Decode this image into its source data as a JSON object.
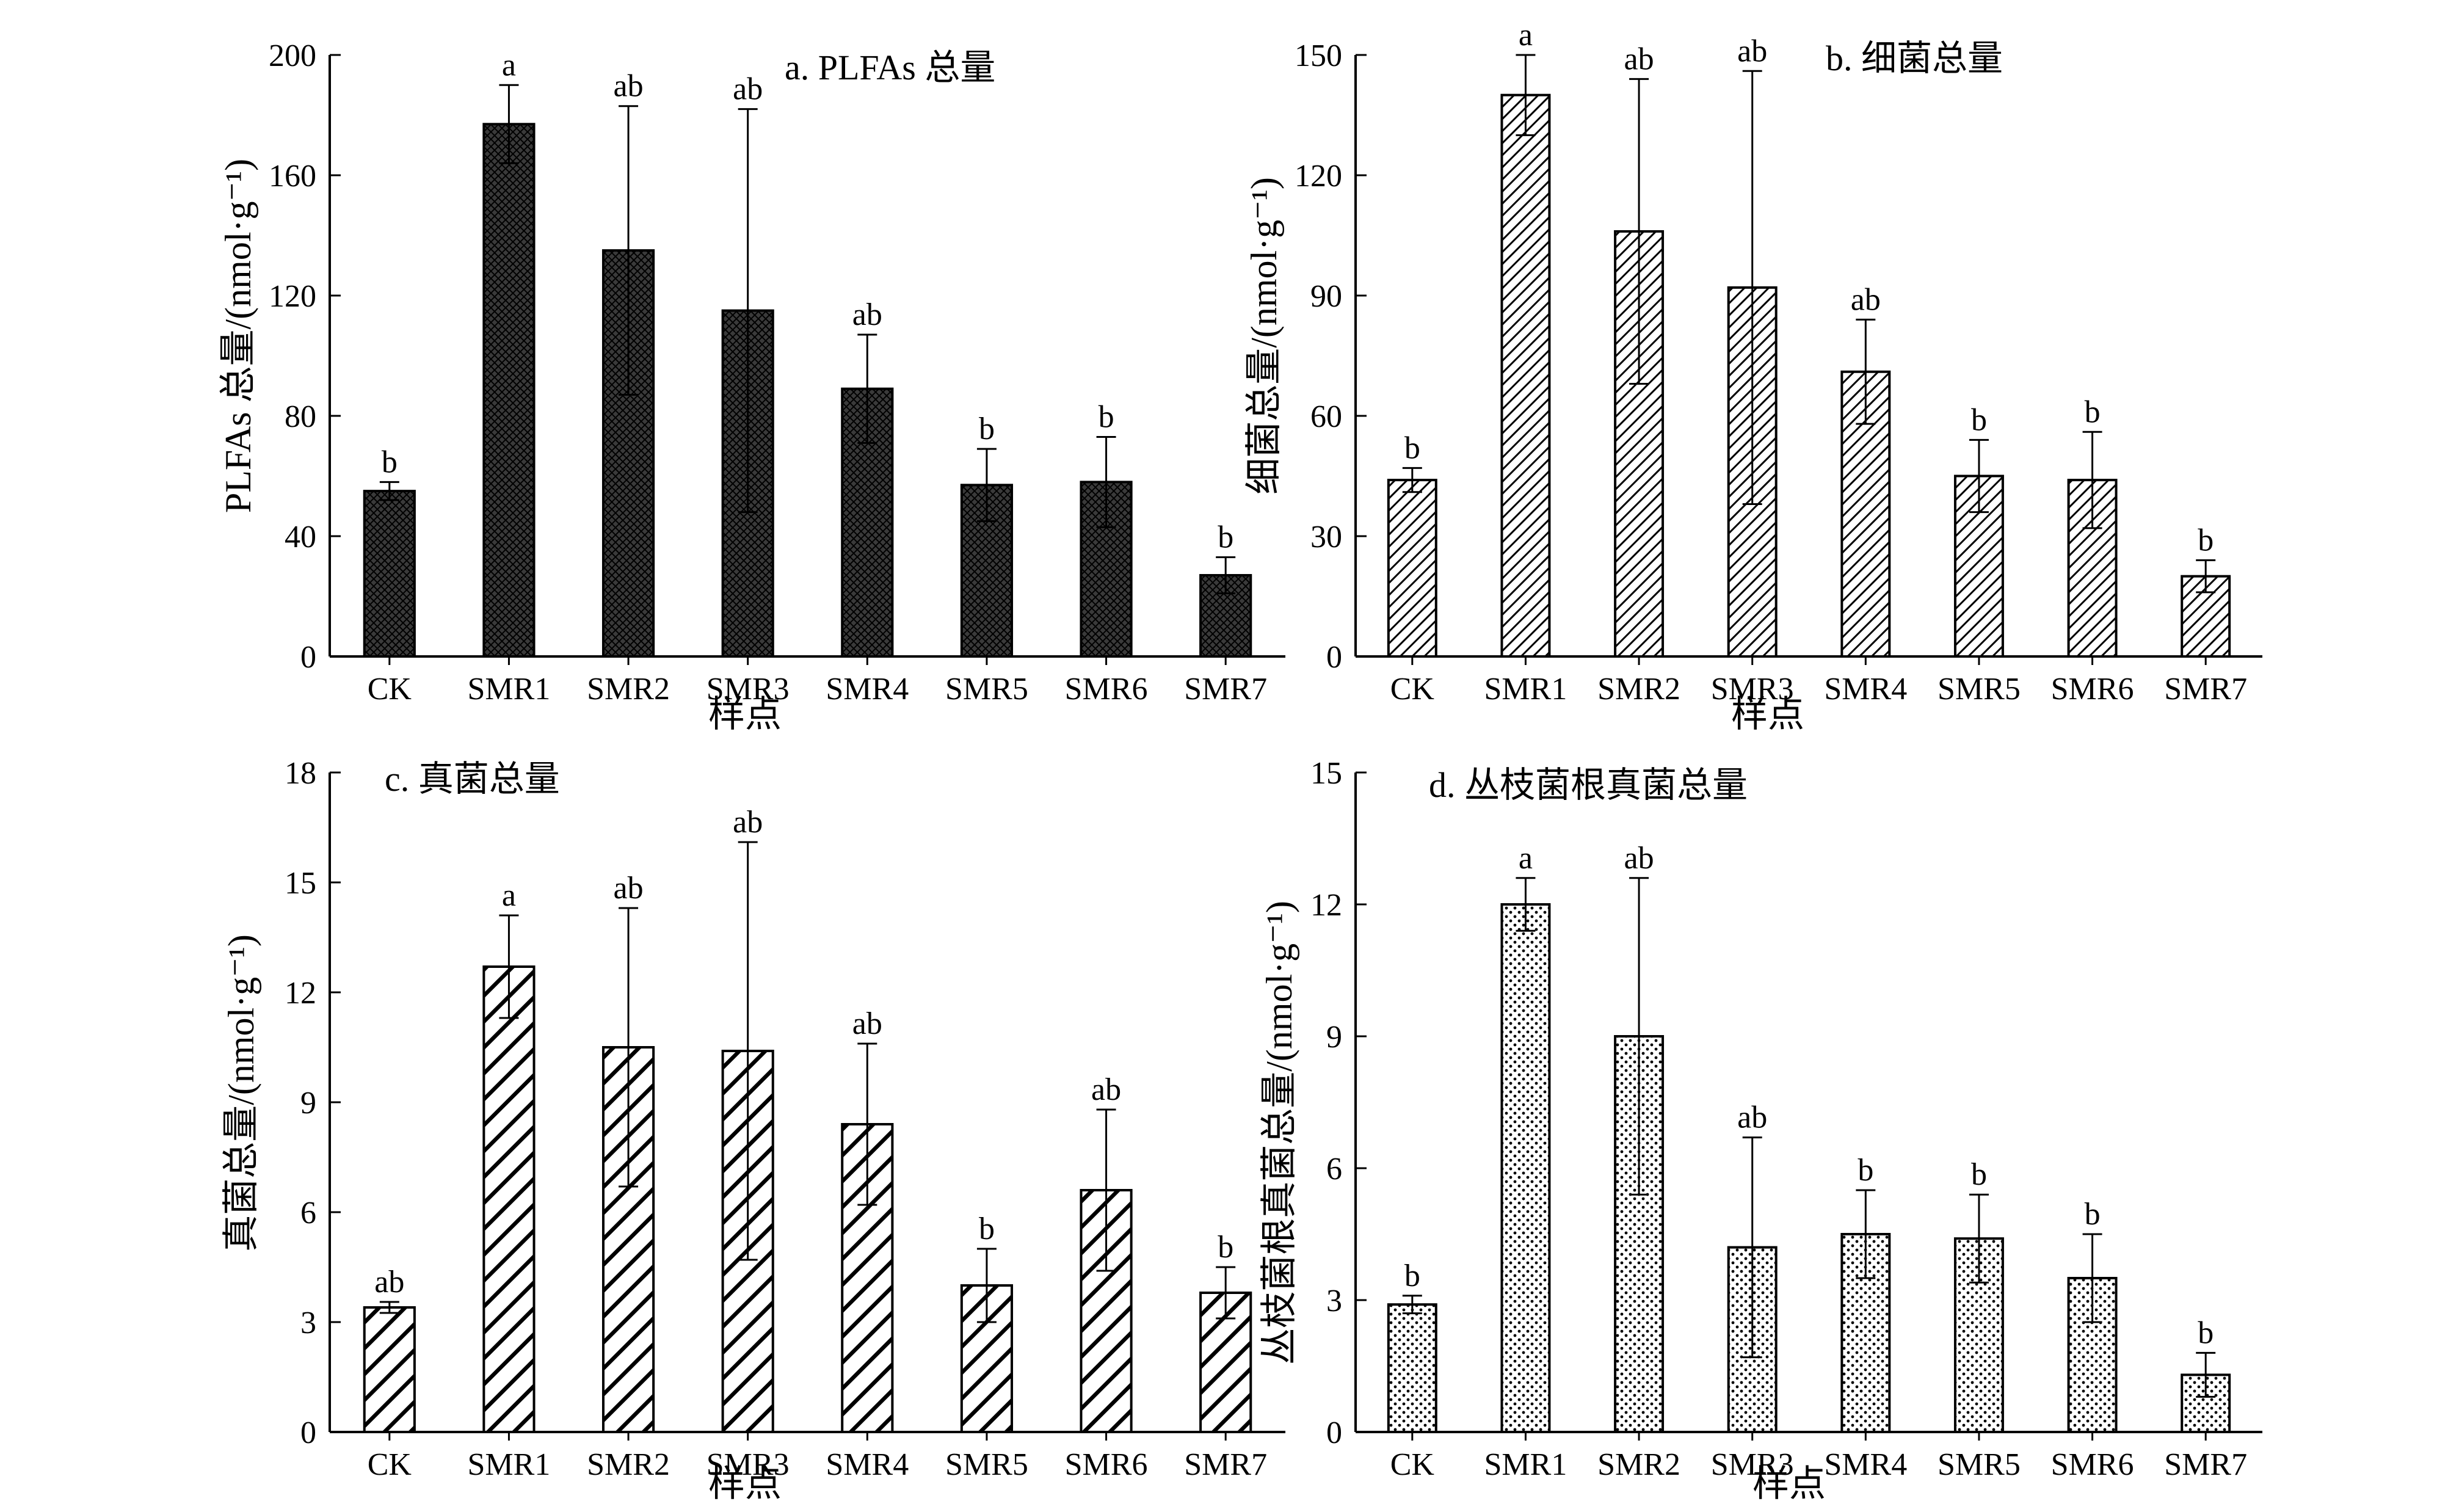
{
  "chart_data": [
    {
      "type": "bar",
      "title": "a. PLFAs 总量",
      "xlabel": "样点",
      "ylabel": "PLFAs 总量/(nmol·g⁻¹)",
      "ylim": [
        0,
        200
      ],
      "yticks": [
        0,
        40,
        80,
        120,
        160,
        200
      ],
      "categories": [
        "CK",
        "SMR1",
        "SMR2",
        "SMR3",
        "SMR4",
        "SMR5",
        "SMR6",
        "SMR7"
      ],
      "values": [
        55,
        177,
        135,
        115,
        89,
        57,
        58,
        27
      ],
      "errors": [
        3,
        13,
        48,
        67,
        18,
        12,
        15,
        6
      ],
      "significance": [
        "b",
        "a",
        "ab",
        "ab",
        "ab",
        "b",
        "b",
        "b"
      ],
      "pattern": "crosshatch-dark"
    },
    {
      "type": "bar",
      "title": "b. 细菌总量",
      "xlabel": "样点",
      "ylabel": "细菌总量/(nmol·g⁻¹)",
      "ylim": [
        0,
        150
      ],
      "yticks": [
        0,
        30,
        60,
        90,
        120,
        150
      ],
      "categories": [
        "CK",
        "SMR1",
        "SMR2",
        "SMR3",
        "SMR4",
        "SMR5",
        "SMR6",
        "SMR7"
      ],
      "values": [
        44,
        140,
        106,
        92,
        71,
        45,
        44,
        20
      ],
      "errors": [
        3,
        10,
        38,
        54,
        13,
        9,
        12,
        4
      ],
      "significance": [
        "b",
        "a",
        "ab",
        "ab",
        "ab",
        "b",
        "b",
        "b"
      ],
      "pattern": "diagonal-fine"
    },
    {
      "type": "bar",
      "title": "c. 真菌总量",
      "xlabel": "样点",
      "ylabel": "真菌总量/(nmol·g⁻¹)",
      "ylim": [
        0,
        18
      ],
      "yticks": [
        0,
        3,
        6,
        9,
        12,
        15,
        18
      ],
      "categories": [
        "CK",
        "SMR1",
        "SMR2",
        "SMR3",
        "SMR4",
        "SMR5",
        "SMR6",
        "SMR7"
      ],
      "values": [
        3.4,
        12.7,
        10.5,
        10.4,
        8.4,
        4.0,
        6.6,
        3.8
      ],
      "errors": [
        0.15,
        1.4,
        3.8,
        5.7,
        2.2,
        1.0,
        2.2,
        0.7
      ],
      "significance": [
        "ab",
        "a",
        "ab",
        "ab",
        "ab",
        "b",
        "ab",
        "b"
      ],
      "pattern": "diagonal-bold"
    },
    {
      "type": "bar",
      "title": "d. 丛枝菌根真菌总量",
      "xlabel": "样点",
      "ylabel": "丛枝菌根真菌总量/(nmol·g⁻¹)",
      "ylim": [
        0,
        15
      ],
      "yticks": [
        0,
        3,
        6,
        9,
        12,
        15
      ],
      "categories": [
        "CK",
        "SMR1",
        "SMR2",
        "SMR3",
        "SMR4",
        "SMR5",
        "SMR6",
        "SMR7"
      ],
      "values": [
        2.9,
        12.0,
        9.0,
        4.2,
        4.5,
        4.4,
        3.5,
        1.3
      ],
      "errors": [
        0.2,
        0.6,
        3.6,
        2.5,
        1.0,
        1.0,
        1.0,
        0.5
      ],
      "significance": [
        "b",
        "a",
        "ab",
        "ab",
        "b",
        "b",
        "b",
        "b"
      ],
      "pattern": "dots"
    }
  ]
}
